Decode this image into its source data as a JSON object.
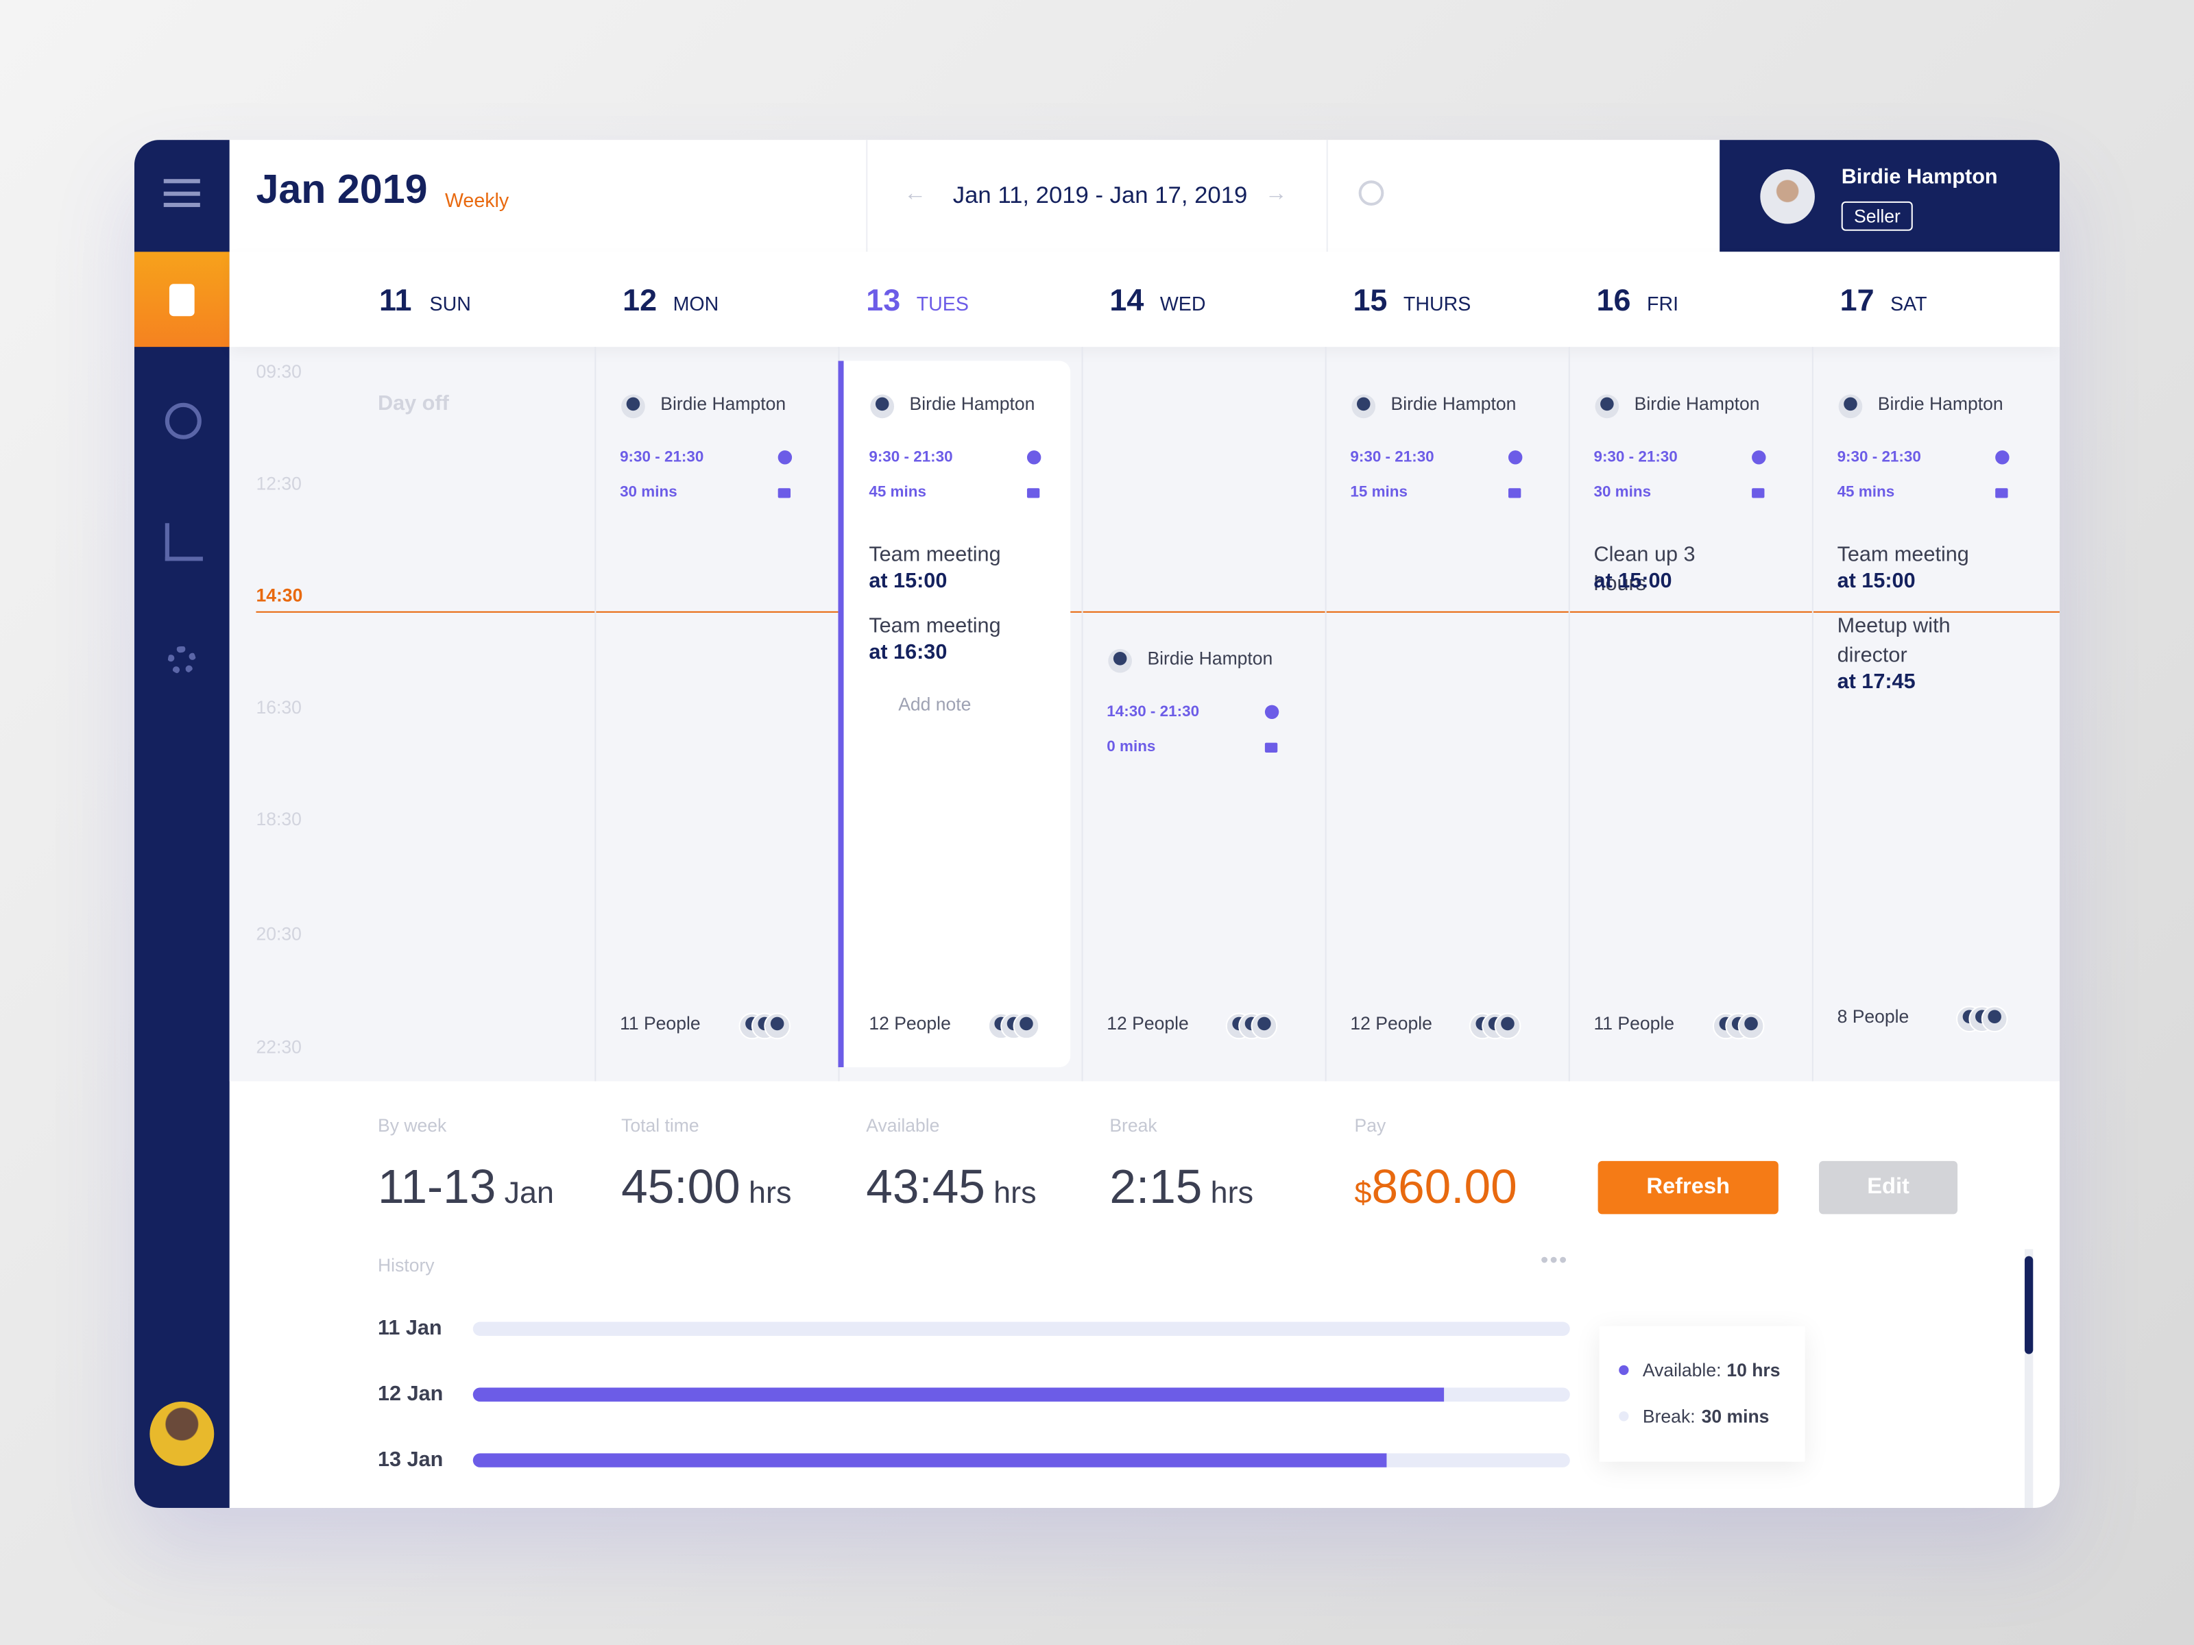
{
  "header": {
    "month": "Jan 2019",
    "view": "Weekly",
    "range": "Jan 11, 2019 - Jan 17, 2019",
    "user": {
      "name": "Birdie Hampton",
      "role": "Seller"
    }
  },
  "times": [
    "09:30",
    "12:30",
    "14:30",
    "16:30",
    "18:30",
    "20:30",
    "22:30"
  ],
  "current_time_index": 2,
  "days": [
    {
      "num": "11",
      "name": "SUN",
      "status": "Day off"
    },
    {
      "num": "12",
      "name": "MON",
      "shift": {
        "name": "Birdie Hampton",
        "time": "9:30 - 21:30",
        "break": "30 mins",
        "notes": [],
        "people": "11 People"
      }
    },
    {
      "num": "13",
      "name": "TUES",
      "selected": true,
      "shift": {
        "name": "Birdie Hampton",
        "time": "9:30 - 21:30",
        "break": "45 mins",
        "notes": [
          {
            "text": "Team meeting",
            "at": "at 15:00"
          },
          {
            "text": "Team meeting",
            "at": "at 16:30"
          }
        ],
        "add_note": "Add note",
        "people": "12 People"
      }
    },
    {
      "num": "14",
      "name": "WED",
      "shift": {
        "name": "Birdie Hampton",
        "time": "14:30 - 21:30",
        "break": "0 mins",
        "notes": [],
        "people": "12 People",
        "late": true
      }
    },
    {
      "num": "15",
      "name": "THURS",
      "shift": {
        "name": "Birdie Hampton",
        "time": "9:30 - 21:30",
        "break": "15 mins",
        "notes": [],
        "people": "12 People"
      }
    },
    {
      "num": "16",
      "name": "FRI",
      "shift": {
        "name": "Birdie Hampton",
        "time": "9:30 - 21:30",
        "break": "30 mins",
        "notes": [
          {
            "text": "Clean up 3 hours",
            "at": "at 15:00"
          }
        ],
        "people": "11 People"
      }
    },
    {
      "num": "17",
      "name": "SAT",
      "shift": {
        "name": "Birdie Hampton",
        "time": "9:30 - 21:30",
        "break": "45 mins",
        "notes": [
          {
            "text": "Team meeting",
            "at": "at 15:00"
          },
          {
            "text": "Meetup with director",
            "at": "at 17:45"
          }
        ],
        "people": "8 People"
      }
    }
  ],
  "summary": [
    {
      "label": "By week",
      "value": "11-13",
      "unit": "Jan"
    },
    {
      "label": "Total time",
      "value": "45:00",
      "unit": "hrs"
    },
    {
      "label": "Available",
      "value": "43:45",
      "unit": "hrs"
    },
    {
      "label": "Break",
      "value": "2:15",
      "unit": "hrs"
    },
    {
      "label": "Pay",
      "prefix": "$",
      "value": "860.00"
    }
  ],
  "buttons": {
    "refresh": "Refresh",
    "edit": "Edit"
  },
  "history": {
    "title": "History",
    "rows": [
      {
        "label": "11 Jan",
        "value": 0
      },
      {
        "label": "12 Jan",
        "value": 88.5
      },
      {
        "label": "13 Jan",
        "value": 83.3
      }
    ],
    "tooltip": [
      {
        "label": "Available:",
        "value": "10 hrs"
      },
      {
        "label": "Break:",
        "value": "30 mins"
      }
    ]
  }
}
